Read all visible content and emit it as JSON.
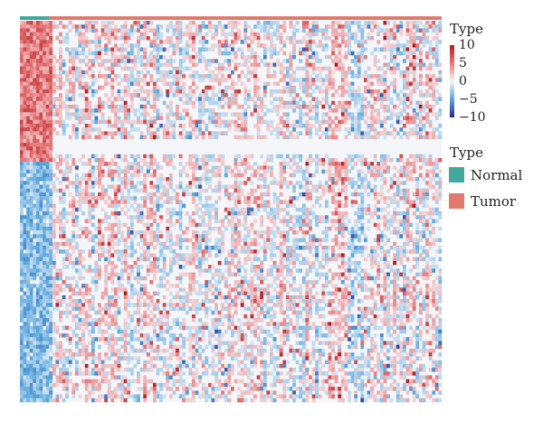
{
  "chart_data": {
    "type": "heatmap",
    "title": "",
    "xlabel": "",
    "ylabel": "",
    "annotation": {
      "title": "Type",
      "categories": [
        {
          "name": "Normal",
          "color": "#3fa89b",
          "fraction": 0.07
        },
        {
          "name": "Tumor",
          "color": "#e07a6c",
          "fraction": 0.93
        }
      ]
    },
    "color_scale": {
      "title": "Type",
      "min": -10,
      "max": 10,
      "ticks": [
        {
          "value": 10,
          "label": "10"
        },
        {
          "value": 5,
          "label": "5"
        },
        {
          "value": 0,
          "label": "0"
        },
        {
          "value": -5,
          "label": "−5"
        },
        {
          "value": -10,
          "label": "−10"
        }
      ],
      "colors": {
        "low": "#2a2a8c",
        "mid_low": "#5aa6dc",
        "zero": "#f4f6fa",
        "mid_high": "#e8787a",
        "high": "#b01c20"
      }
    },
    "grid": false,
    "legend_position": "right"
  },
  "colors": {
    "normal": "#3fa89b",
    "tumor": "#e07a6c"
  }
}
